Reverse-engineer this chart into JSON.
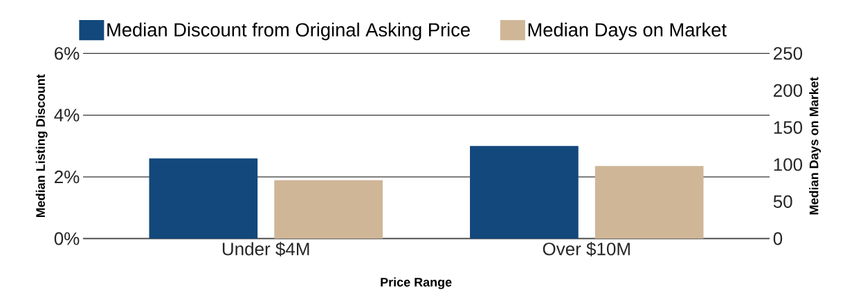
{
  "chart_data": {
    "type": "bar",
    "xlabel": "Price Range",
    "ylabel": "Median Listing Discount",
    "y2label": "Median Days on Market",
    "categories": [
      "Under $4M",
      "Over $10M"
    ],
    "series": [
      {
        "name": "Median Discount from Original Asking Price",
        "color": "#12487c",
        "values": [
          2.6,
          3.0
        ]
      },
      {
        "name": "Median Days on Market",
        "color": "#cfb697",
        "values": [
          79,
          98
        ],
        "axis": "y2"
      }
    ],
    "ylim": [
      0,
      6
    ],
    "yticks": [
      {
        "value": 0,
        "label": "0%"
      },
      {
        "value": 2,
        "label": "2%"
      },
      {
        "value": 4,
        "label": "4%"
      },
      {
        "value": 6,
        "label": "6%"
      }
    ],
    "y2lim": [
      0,
      250
    ],
    "y2ticks": [
      0,
      50,
      100,
      150,
      200,
      250
    ],
    "grid": "y",
    "legend": "top"
  }
}
